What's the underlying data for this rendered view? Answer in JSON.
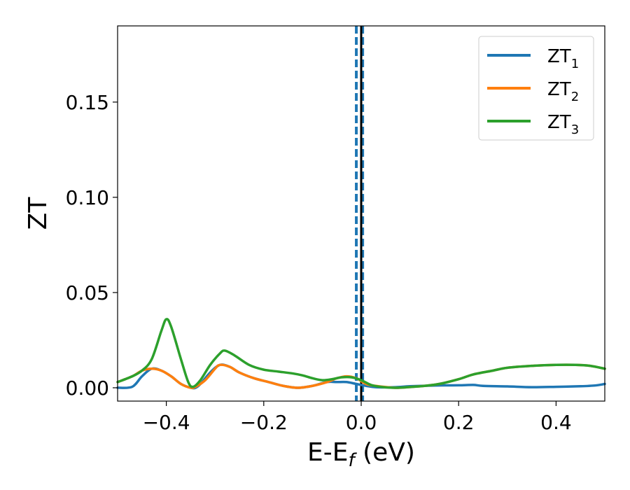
{
  "chart_data": {
    "type": "line",
    "title": "",
    "xlabel": {
      "base": "E-E",
      "sub": "f",
      "unit": " (eV)"
    },
    "ylabel": "ZT",
    "xlim": [
      -0.5,
      0.5
    ],
    "ylim": [
      -0.007,
      0.19
    ],
    "x_ticks": [
      -0.4,
      -0.2,
      0.0,
      0.2,
      0.4
    ],
    "x_tick_labels": [
      "−0.4",
      "−0.2",
      "0.0",
      "0.2",
      "0.4"
    ],
    "y_ticks": [
      0.0,
      0.05,
      0.1,
      0.15
    ],
    "y_tick_labels": [
      "0.00",
      "0.05",
      "0.10",
      "0.15"
    ],
    "grid": false,
    "legend_position": "top-right",
    "vertical_lines": [
      {
        "x": -0.01,
        "style": "dashed",
        "color": "#1f77b4"
      },
      {
        "x": 0.003,
        "style": "dashed",
        "color": "#1f77b4"
      },
      {
        "x": 0.0,
        "style": "solid",
        "color": "#000000"
      }
    ],
    "series": [
      {
        "name": "ZT",
        "sub": "1",
        "color": "#1f77b4",
        "points": [
          [
            -0.5,
            0.0
          ],
          [
            -0.47,
            0.0005
          ],
          [
            -0.45,
            0.006
          ],
          [
            -0.43,
            0.01
          ],
          [
            -0.41,
            0.009
          ],
          [
            -0.39,
            0.006
          ],
          [
            -0.37,
            0.002
          ],
          [
            -0.35,
            0.0
          ],
          [
            -0.34,
            0.0
          ],
          [
            -0.33,
            0.002
          ],
          [
            -0.31,
            0.008
          ],
          [
            -0.29,
            0.012
          ],
          [
            -0.27,
            0.011
          ],
          [
            -0.25,
            0.008
          ],
          [
            -0.22,
            0.005
          ],
          [
            -0.19,
            0.003
          ],
          [
            -0.16,
            0.001
          ],
          [
            -0.13,
            0.0
          ],
          [
            -0.1,
            0.001
          ],
          [
            -0.07,
            0.003
          ],
          [
            -0.05,
            0.003
          ],
          [
            -0.03,
            0.003
          ],
          [
            -0.01,
            0.002
          ],
          [
            0.01,
            0.001
          ],
          [
            0.03,
            0.0003
          ],
          [
            0.07,
            0.0003
          ],
          [
            0.1,
            0.0008
          ],
          [
            0.15,
            0.0012
          ],
          [
            0.2,
            0.0013
          ],
          [
            0.23,
            0.0015
          ],
          [
            0.25,
            0.001
          ],
          [
            0.3,
            0.0007
          ],
          [
            0.35,
            0.0003
          ],
          [
            0.4,
            0.0005
          ],
          [
            0.45,
            0.0008
          ],
          [
            0.48,
            0.0012
          ],
          [
            0.5,
            0.002
          ]
        ]
      },
      {
        "name": "ZT",
        "sub": "2",
        "color": "#ff7f0e",
        "points": [
          [
            -0.5,
            0.003
          ],
          [
            -0.47,
            0.006
          ],
          [
            -0.45,
            0.009
          ],
          [
            -0.43,
            0.01
          ],
          [
            -0.41,
            0.009
          ],
          [
            -0.39,
            0.006
          ],
          [
            -0.37,
            0.002
          ],
          [
            -0.35,
            0.0
          ],
          [
            -0.34,
            0.0005
          ],
          [
            -0.32,
            0.004
          ],
          [
            -0.3,
            0.01
          ],
          [
            -0.29,
            0.012
          ],
          [
            -0.27,
            0.011
          ],
          [
            -0.25,
            0.008
          ],
          [
            -0.22,
            0.005
          ],
          [
            -0.19,
            0.003
          ],
          [
            -0.16,
            0.001
          ],
          [
            -0.13,
            0.0
          ],
          [
            -0.1,
            0.001
          ],
          [
            -0.07,
            0.003
          ],
          [
            -0.05,
            0.005
          ],
          [
            -0.03,
            0.006
          ],
          [
            -0.01,
            0.005
          ],
          [
            0.01,
            0.002
          ],
          [
            0.03,
            0.001
          ],
          [
            0.07,
            0.0
          ],
          [
            0.1,
            0.0004
          ],
          [
            0.13,
            0.001
          ],
          [
            0.16,
            0.002
          ],
          [
            0.2,
            0.0045
          ],
          [
            0.23,
            0.007
          ],
          [
            0.27,
            0.009
          ],
          [
            0.3,
            0.0105
          ],
          [
            0.35,
            0.0115
          ],
          [
            0.4,
            0.012
          ],
          [
            0.44,
            0.012
          ],
          [
            0.47,
            0.0115
          ],
          [
            0.5,
            0.01
          ]
        ]
      },
      {
        "name": "ZT",
        "sub": "3",
        "color": "#2ca02c",
        "points": [
          [
            -0.5,
            0.003
          ],
          [
            -0.47,
            0.006
          ],
          [
            -0.45,
            0.009
          ],
          [
            -0.43,
            0.015
          ],
          [
            -0.41,
            0.03
          ],
          [
            -0.4,
            0.036
          ],
          [
            -0.39,
            0.032
          ],
          [
            -0.37,
            0.015
          ],
          [
            -0.355,
            0.003
          ],
          [
            -0.345,
            0.0005
          ],
          [
            -0.33,
            0.004
          ],
          [
            -0.31,
            0.012
          ],
          [
            -0.29,
            0.018
          ],
          [
            -0.28,
            0.0195
          ],
          [
            -0.26,
            0.017
          ],
          [
            -0.23,
            0.012
          ],
          [
            -0.2,
            0.0095
          ],
          [
            -0.17,
            0.0085
          ],
          [
            -0.14,
            0.0075
          ],
          [
            -0.12,
            0.0065
          ],
          [
            -0.1,
            0.005
          ],
          [
            -0.08,
            0.004
          ],
          [
            -0.06,
            0.0045
          ],
          [
            -0.04,
            0.0055
          ],
          [
            -0.02,
            0.0055
          ],
          [
            0.0,
            0.004
          ],
          [
            0.02,
            0.0015
          ],
          [
            0.04,
            0.0005
          ],
          [
            0.07,
            0.0
          ],
          [
            0.1,
            0.0004
          ],
          [
            0.13,
            0.001
          ],
          [
            0.16,
            0.002
          ],
          [
            0.2,
            0.0045
          ],
          [
            0.23,
            0.007
          ],
          [
            0.27,
            0.009
          ],
          [
            0.3,
            0.0105
          ],
          [
            0.35,
            0.0115
          ],
          [
            0.4,
            0.012
          ],
          [
            0.44,
            0.012
          ],
          [
            0.47,
            0.0115
          ],
          [
            0.5,
            0.01
          ]
        ]
      }
    ]
  }
}
